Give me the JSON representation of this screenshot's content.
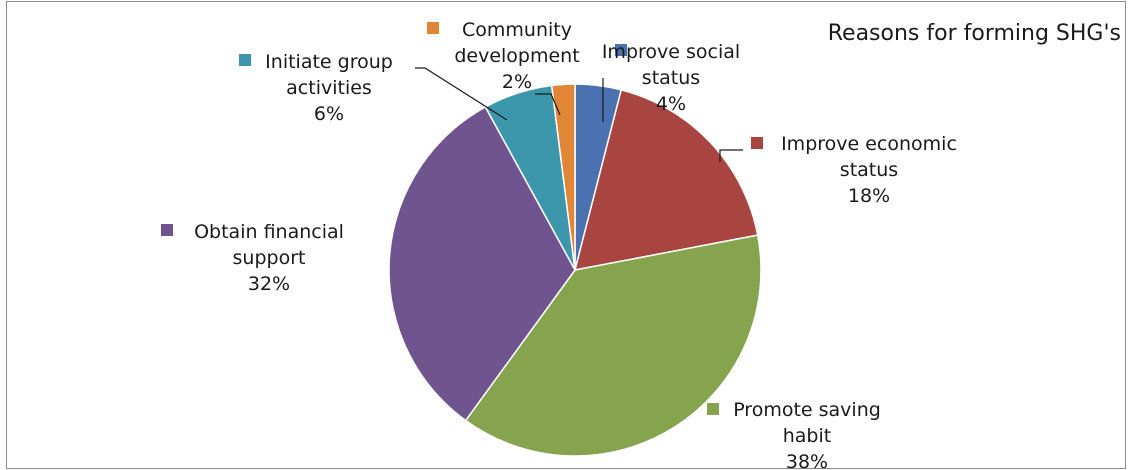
{
  "chart_data": {
    "type": "pie",
    "title": "Reasons for forming SHG's",
    "slices": [
      {
        "name": "Improve social status",
        "label_lines": [
          "Improve social",
          "status"
        ],
        "value": 4,
        "value_label": "4%",
        "color": "#4a72b0"
      },
      {
        "name": "Improve economic status",
        "label_lines": [
          "Improve economic",
          "status"
        ],
        "value": 18,
        "value_label": "18%",
        "color": "#a84541"
      },
      {
        "name": "Promote saving habit",
        "label_lines": [
          "Promote saving",
          "habit"
        ],
        "value": 38,
        "value_label": "38%",
        "color": "#86a34d"
      },
      {
        "name": "Obtain financial support",
        "label_lines": [
          "Obtain financial",
          "support"
        ],
        "value": 32,
        "value_label": "32%",
        "color": "#6f5490"
      },
      {
        "name": "Initiate group activities",
        "label_lines": [
          "Initiate group",
          "activities"
        ],
        "value": 6,
        "value_label": "6%",
        "color": "#3c97ad"
      },
      {
        "name": "Community development",
        "label_lines": [
          "Community",
          "development"
        ],
        "value": 2,
        "value_label": "2%",
        "color": "#e08636"
      }
    ]
  }
}
